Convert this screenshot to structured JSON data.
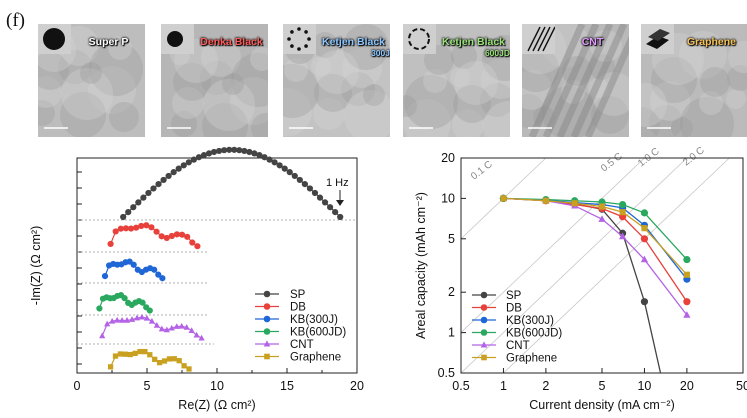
{
  "figure_label": "(f)",
  "tem_panels": [
    {
      "label": "Super P",
      "sub": "",
      "color": "#ffffff"
    },
    {
      "label": "Denka Black",
      "sub": "",
      "color": "#ff5a5a"
    },
    {
      "label": "Ketjen Black",
      "sub": "300J",
      "color": "#8ec8ff"
    },
    {
      "label": "Ketjen Black",
      "sub": "600JD",
      "color": "#9be37c"
    },
    {
      "label": "CNT",
      "sub": "",
      "color": "#e39bff"
    },
    {
      "label": "Graphene",
      "sub": "",
      "color": "#f6c35a"
    }
  ],
  "chart_data": [
    {
      "type": "line",
      "xlabel": "Re(Z) (Ω cm²)",
      "ylabel": "-Im(Z) (Ω cm²)",
      "xlim": [
        0,
        20
      ],
      "xticks": [
        "0",
        "5",
        "10",
        "15",
        "20"
      ],
      "annotation": "1 Hz",
      "legend_position": "bottom-right",
      "grid": false,
      "series": [
        {
          "name": "SP",
          "color": "#444444",
          "marker": "circle",
          "x_start": 3.3,
          "x_end": 18.8,
          "peak": 1.6
        },
        {
          "name": "DB",
          "color": "#e8413c",
          "marker": "circle",
          "x_start": 2.4,
          "x_end": 8.6,
          "peak": 0.55
        },
        {
          "name": "KB(300J)",
          "color": "#1f66d6",
          "marker": "circle",
          "x_start": 2.0,
          "x_end": 6.1,
          "peak": 0.42
        },
        {
          "name": "KB(600JD)",
          "color": "#2aa860",
          "marker": "circle",
          "x_start": 1.6,
          "x_end": 5.2,
          "peak": 0.38
        },
        {
          "name": "CNT",
          "color": "#b463e6",
          "marker": "triangle",
          "x_start": 1.8,
          "x_end": 8.9,
          "peak": 0.55
        },
        {
          "name": "Graphene",
          "color": "#c9a020",
          "marker": "square",
          "x_start": 2.4,
          "x_end": 8.0,
          "peak": 0.45
        }
      ]
    },
    {
      "type": "line",
      "xlabel": "Current density (mA cm⁻²)",
      "ylabel": "Areal capacity (mAh cm⁻²)",
      "xscale": "log",
      "yscale": "log",
      "xlim": [
        0.5,
        50
      ],
      "ylim": [
        0.5,
        20
      ],
      "xticks": [
        "0.5",
        "1",
        "2",
        "5",
        "10",
        "20",
        "50"
      ],
      "yticks": [
        "0.5",
        "1",
        "2",
        "5",
        "10",
        "20"
      ],
      "c_rate_labels": [
        "0.1 C",
        "0.5 C",
        "1.0 C",
        "2.0 C"
      ],
      "legend_position": "bottom-left",
      "grid": false,
      "x": [
        1,
        2,
        3.2,
        5,
        7,
        10,
        20
      ],
      "series": [
        {
          "name": "SP",
          "color": "#444444",
          "marker": "circle",
          "x": [
            1,
            2,
            3.2,
            5,
            7,
            10,
            13
          ],
          "values": [
            10.0,
            9.7,
            9.1,
            8.3,
            5.5,
            1.7,
            0.5
          ]
        },
        {
          "name": "DB",
          "color": "#e8413c",
          "marker": "circle",
          "x": [
            1,
            2,
            3.2,
            5,
            7,
            10,
            20
          ],
          "values": [
            10.0,
            9.6,
            9.0,
            8.4,
            7.3,
            5.0,
            1.7
          ]
        },
        {
          "name": "KB(300J)",
          "color": "#1f66d6",
          "marker": "circle",
          "x": [
            1,
            2,
            3.2,
            5,
            7,
            10,
            20
          ],
          "values": [
            10.0,
            9.7,
            9.3,
            9.0,
            8.5,
            6.3,
            2.5
          ]
        },
        {
          "name": "KB(600JD)",
          "color": "#2aa860",
          "marker": "circle",
          "x": [
            1,
            2,
            3.2,
            5,
            7,
            10,
            20
          ],
          "values": [
            10.0,
            9.8,
            9.6,
            9.4,
            9.0,
            7.8,
            3.5
          ]
        },
        {
          "name": "CNT",
          "color": "#b463e6",
          "marker": "triangle",
          "x": [
            1,
            2,
            3.2,
            5,
            7,
            10,
            20
          ],
          "values": [
            10.0,
            9.6,
            8.8,
            7.0,
            5.2,
            3.5,
            1.35
          ]
        },
        {
          "name": "Graphene",
          "color": "#c9a020",
          "marker": "square",
          "x": [
            1,
            2,
            3.2,
            5,
            7,
            10,
            20
          ],
          "values": [
            10.0,
            9.6,
            9.2,
            8.7,
            7.9,
            6.0,
            2.7
          ]
        }
      ]
    }
  ]
}
